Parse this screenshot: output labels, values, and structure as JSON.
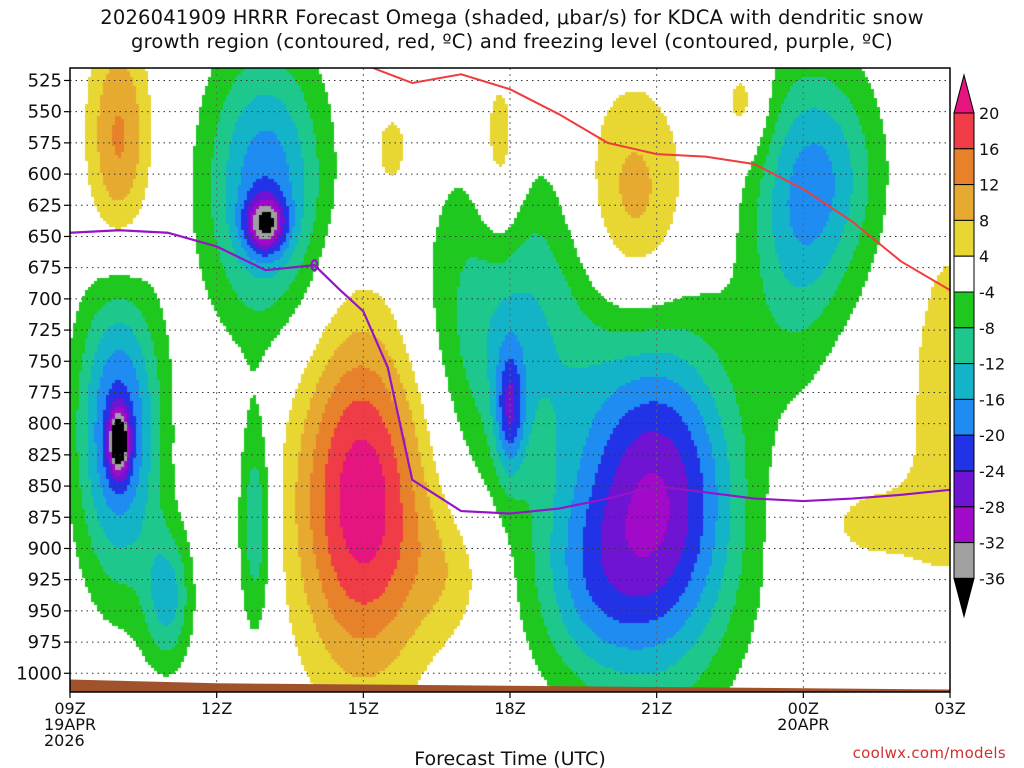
{
  "page": {
    "title_line1": "2026041909 HRRR Forecast Omega (shaded, μbar/s) for KDCA with dendritic snow",
    "title_line2": "growth region (contoured, red, ºC) and freezing level (contoured, purple, ºC)",
    "credit": "coolwx.com/models"
  },
  "chart_data": {
    "type": "heatmap",
    "title": "2026041909 HRRR Forecast Omega (shaded, μbar/s) for KDCA with dendritic snow growth region (contoured, red, ºC) and freezing level (contoured, purple, ºC)",
    "xlabel": "Forecast Time (UTC)",
    "ylabel": "",
    "x_range_hours": [
      0,
      18
    ],
    "y_range_hpa": [
      515,
      1015
    ],
    "x_ticks": [
      {
        "hour": 0,
        "lines": [
          "09Z",
          "19APR",
          "2026"
        ]
      },
      {
        "hour": 3,
        "lines": [
          "12Z"
        ]
      },
      {
        "hour": 6,
        "lines": [
          "15Z"
        ]
      },
      {
        "hour": 9,
        "lines": [
          "18Z"
        ]
      },
      {
        "hour": 12,
        "lines": [
          "21Z"
        ]
      },
      {
        "hour": 15,
        "lines": [
          "00Z",
          "20APR"
        ]
      },
      {
        "hour": 18,
        "lines": [
          "03Z"
        ]
      }
    ],
    "y_ticks": [
      525,
      550,
      575,
      600,
      625,
      650,
      675,
      700,
      725,
      750,
      775,
      800,
      825,
      850,
      875,
      900,
      925,
      950,
      975,
      1000
    ],
    "colorbar": {
      "tick_labels": [
        "20",
        "16",
        "12",
        "8",
        "4",
        "-4",
        "-8",
        "-12",
        "-16",
        "-20",
        "-24",
        "-28",
        "-32",
        "-36"
      ],
      "bins": [
        {
          "min": 16,
          "max": 20,
          "color": "#f03c46"
        },
        {
          "min": 12,
          "max": 16,
          "color": "#e8822a"
        },
        {
          "min": 8,
          "max": 12,
          "color": "#e6aa30"
        },
        {
          "min": 4,
          "max": 8,
          "color": "#e8d632"
        },
        {
          "min": -4,
          "max": 4,
          "color": "#ffffff"
        },
        {
          "min": -8,
          "max": -4,
          "color": "#1ec81e"
        },
        {
          "min": -12,
          "max": -8,
          "color": "#1ec88c"
        },
        {
          "min": -16,
          "max": -12,
          "color": "#14b4c8"
        },
        {
          "min": -20,
          "max": -16,
          "color": "#1e8cf0"
        },
        {
          "min": -24,
          "max": -20,
          "color": "#2232e6"
        },
        {
          "min": -28,
          "max": -24,
          "color": "#6e14d2"
        },
        {
          "min": -32,
          "max": -28,
          "color": "#a00ac8"
        },
        {
          "min": -36,
          "max": -32,
          "color": "#a0a0a0"
        }
      ],
      "over_color": "#e6147e",
      "under_color": "#000000"
    },
    "omega_cells": [
      {
        "h": 1.0,
        "p": 575,
        "rh": 0.65,
        "rp": 95,
        "peak": 13
      },
      {
        "h": 4.0,
        "p": 610,
        "rh": 1.2,
        "rp": 110,
        "peak": -19
      },
      {
        "h": 4.0,
        "p": 640,
        "rh": 0.4,
        "rp": 22,
        "peak": -22
      },
      {
        "h": 6.6,
        "p": 580,
        "rh": 0.45,
        "rp": 38,
        "peak": 6
      },
      {
        "h": 1.0,
        "p": 805,
        "rh": 0.85,
        "rp": 120,
        "peak": -22
      },
      {
        "h": 1.0,
        "p": 815,
        "rh": 0.2,
        "rp": 25,
        "peak": -26
      },
      {
        "h": 2.0,
        "p": 940,
        "rh": 0.5,
        "rp": 55,
        "peak": -13
      },
      {
        "h": 3.8,
        "p": 880,
        "rh": 0.35,
        "rp": 90,
        "peak": -12
      },
      {
        "h": 6.0,
        "p": 860,
        "rh": 1.35,
        "rp": 140,
        "peak": 23
      },
      {
        "h": 7.8,
        "p": 920,
        "rh": 0.85,
        "rp": 55,
        "peak": 5
      },
      {
        "h": 9.0,
        "p": 720,
        "rh": 1.8,
        "rp": 130,
        "peak": -13
      },
      {
        "h": 9.0,
        "p": 790,
        "rh": 0.3,
        "rp": 50,
        "peak": -15
      },
      {
        "h": 10.5,
        "p": 930,
        "rh": 1.2,
        "rp": 80,
        "peak": -9
      },
      {
        "h": 8.8,
        "p": 590,
        "rh": 0.5,
        "rp": 80,
        "peak": 9
      },
      {
        "h": 11.5,
        "p": 625,
        "rh": 1.1,
        "rp": 95,
        "peak": 11
      },
      {
        "h": 12.0,
        "p": 865,
        "rh": 1.65,
        "rp": 140,
        "peak": -28
      },
      {
        "h": 14.8,
        "p": 640,
        "rh": 1.0,
        "rp": 120,
        "peak": -11
      },
      {
        "h": 15.6,
        "p": 600,
        "rh": 1.1,
        "rp": 90,
        "peak": -11
      },
      {
        "h": 13.8,
        "p": 545,
        "rh": 0.5,
        "rp": 40,
        "peak": 7
      },
      {
        "h": 16.5,
        "p": 880,
        "rh": 1.6,
        "rp": 45,
        "peak": 5
      },
      {
        "h": 18.0,
        "p": 780,
        "rh": 0.8,
        "rp": 130,
        "peak": 8
      }
    ],
    "dgz_top_line": {
      "color": "#f03c3c",
      "h": [
        6.2,
        7.0,
        8.0,
        9.0,
        10.0,
        11.0,
        12.0,
        13.0,
        14.0,
        15.0,
        16.0,
        17.0,
        18.0
      ],
      "p": [
        515,
        527,
        520,
        532,
        552,
        575,
        584,
        586,
        592,
        612,
        638,
        670,
        693
      ]
    },
    "freezing_level": {
      "color": "#9614c8",
      "h": [
        0.0,
        1.0,
        2.0,
        3.0,
        4.0,
        5.0,
        5.5,
        6.0,
        6.5,
        7.0,
        8.0,
        9.0,
        10.0,
        11.0,
        12.0,
        13.0,
        14.0,
        15.0,
        16.0,
        17.0,
        18.0
      ],
      "p": [
        647,
        645,
        647,
        658,
        677,
        673,
        692,
        710,
        755,
        845,
        870,
        872,
        868,
        860,
        850,
        855,
        860,
        862,
        860,
        857,
        853
      ]
    },
    "terrain": {
      "color": "#a0522d",
      "h": [
        0.0,
        3.0,
        6.0,
        9.0,
        12.0,
        15.0,
        18.0
      ],
      "p": [
        1005,
        1008,
        1009,
        1010,
        1011,
        1012,
        1013
      ]
    }
  }
}
